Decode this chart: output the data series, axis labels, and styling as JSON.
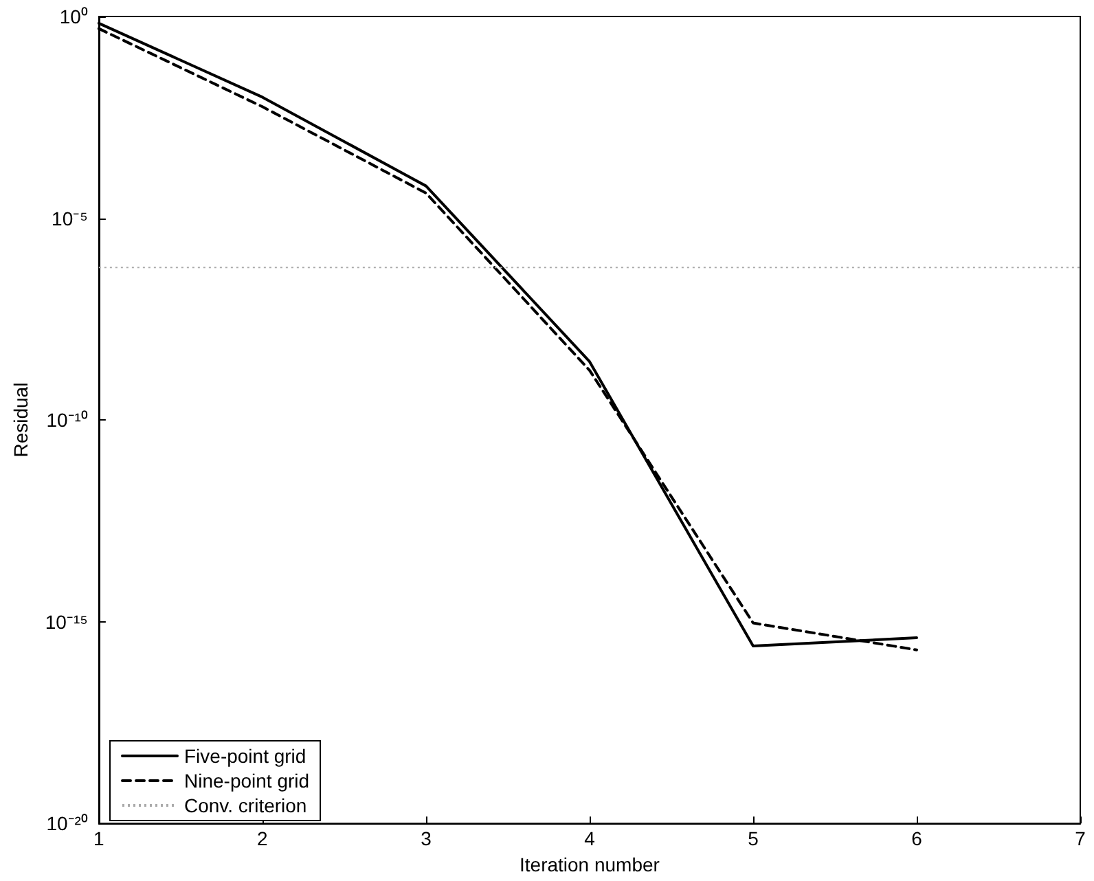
{
  "chart_data": {
    "type": "line",
    "xlabel": "Iteration number",
    "ylabel": "Residual",
    "x": [
      1,
      2,
      3,
      4,
      5,
      6
    ],
    "series": [
      {
        "name": "Five-point grid",
        "color": "#000000",
        "line_style": "solid",
        "values": [
          0.68,
          0.01,
          6.3e-05,
          2.8e-09,
          2.5e-16,
          4e-16
        ]
      },
      {
        "name": "Nine-point grid",
        "color": "#000000",
        "line_style": "dashed",
        "values": [
          0.5,
          0.0058,
          4.2e-05,
          1.7e-09,
          9.3e-16,
          2e-16
        ]
      }
    ],
    "ref_lines": [
      {
        "axis": "y",
        "value": 6e-07,
        "label": "Conv. criterion",
        "color": "#aaaaaa",
        "line_style": "dotted"
      }
    ],
    "log": "y",
    "xlim": [
      1,
      7
    ],
    "xticks": [
      1,
      2,
      3,
      4,
      5,
      6,
      7
    ],
    "ylim": [
      1e-20,
      1
    ],
    "yticks": [
      {
        "value": 1e-20,
        "label": "10⁻²⁰"
      },
      {
        "value": 1e-15,
        "label": "10⁻¹⁵"
      },
      {
        "value": 1e-10,
        "label": "10⁻¹⁰"
      },
      {
        "value": 1e-05,
        "label": "10⁻⁵"
      },
      {
        "value": 1,
        "label": "10⁰"
      }
    ],
    "grid": false,
    "legend": "bottom left",
    "marker": "none"
  }
}
